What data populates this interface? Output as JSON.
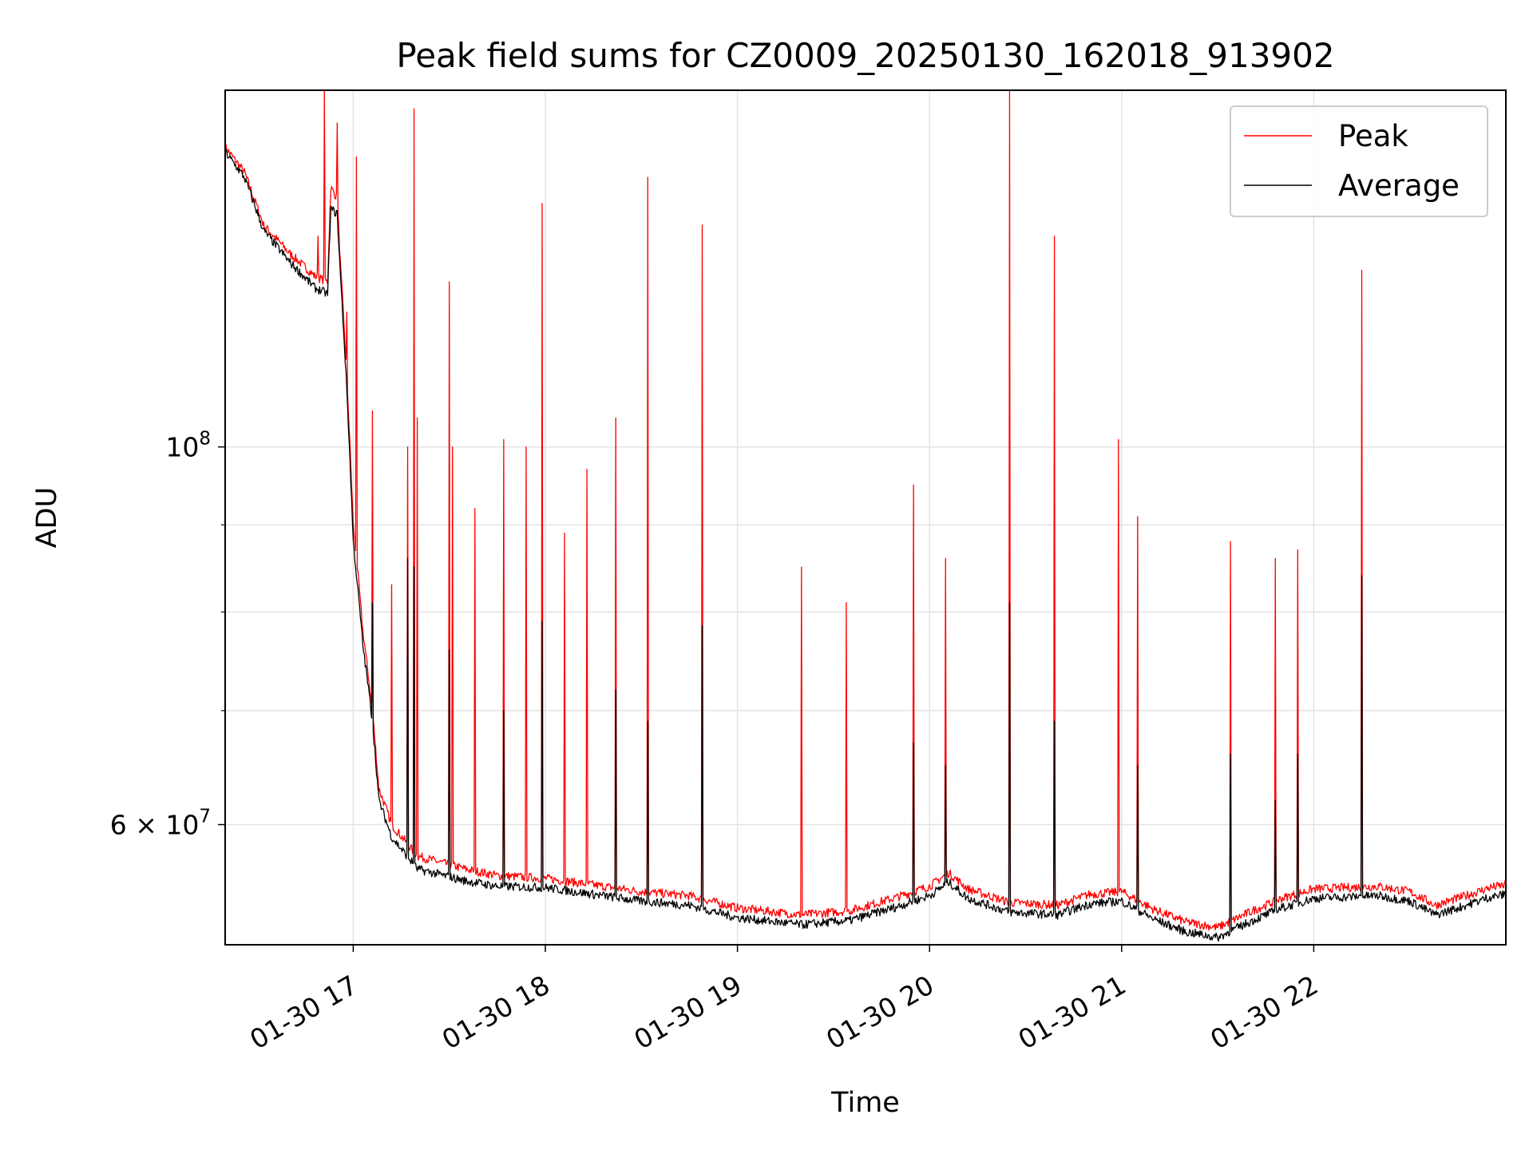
{
  "chart_data": {
    "type": "line",
    "title": "Peak field sums for CZ0009_20250130_162018_913902",
    "xlabel": "Time",
    "ylabel": "ADU",
    "yscale": "log",
    "grid": true,
    "legend_position": "top-right",
    "xlim": [
      "2025-01-30 16:20",
      "2025-01-30 23:00"
    ],
    "ylim": [
      51000000,
      162000000
    ],
    "x_ticks": [
      {
        "value": "2025-01-30 17:00",
        "label": "01-30 17"
      },
      {
        "value": "2025-01-30 18:00",
        "label": "01-30 18"
      },
      {
        "value": "2025-01-30 19:00",
        "label": "01-30 19"
      },
      {
        "value": "2025-01-30 20:00",
        "label": "01-30 20"
      },
      {
        "value": "2025-01-30 21:00",
        "label": "01-30 21"
      },
      {
        "value": "2025-01-30 22:00",
        "label": "01-30 22"
      }
    ],
    "y_major_ticks": [
      {
        "value": 60000000,
        "base": "6",
        "times": "×",
        "mant": "10",
        "exp": "7"
      },
      {
        "value": 100000000,
        "base": "",
        "times": "",
        "mant": "10",
        "exp": "8"
      }
    ],
    "y_minor_ticks": [
      70000000,
      80000000,
      90000000
    ],
    "series": [
      {
        "name": "Peak",
        "color": "#ff0000",
        "baseline": [
          [
            "2025-01-30 16:20",
            150000000
          ],
          [
            "2025-01-30 16:26",
            145000000
          ],
          [
            "2025-01-30 16:32",
            135000000
          ],
          [
            "2025-01-30 16:40",
            130000000
          ],
          [
            "2025-01-30 16:48",
            126000000
          ],
          [
            "2025-01-30 16:52",
            125000000
          ],
          [
            "2025-01-30 16:53",
            142000000
          ],
          [
            "2025-01-30 16:55",
            140000000
          ],
          [
            "2025-01-30 16:56",
            128000000
          ],
          [
            "2025-01-30 16:58",
            110000000
          ],
          [
            "2025-01-30 17:00",
            90000000
          ],
          [
            "2025-01-30 17:03",
            78000000
          ],
          [
            "2025-01-30 17:06",
            70000000
          ],
          [
            "2025-01-30 17:08",
            63000000
          ],
          [
            "2025-01-30 17:12",
            60000000
          ],
          [
            "2025-01-30 17:20",
            57500000
          ],
          [
            "2025-01-30 17:35",
            56500000
          ],
          [
            "2025-01-30 17:45",
            56000000
          ],
          [
            "2025-01-30 18:00",
            55800000
          ],
          [
            "2025-01-30 18:15",
            55300000
          ],
          [
            "2025-01-30 18:30",
            54800000
          ],
          [
            "2025-01-30 18:45",
            54500000
          ],
          [
            "2025-01-30 19:00",
            53600000
          ],
          [
            "2025-01-30 19:20",
            53100000
          ],
          [
            "2025-01-30 19:35",
            53400000
          ],
          [
            "2025-01-30 19:50",
            54400000
          ],
          [
            "2025-01-30 20:00",
            55200000
          ],
          [
            "2025-01-30 20:06",
            56200000
          ],
          [
            "2025-01-30 20:12",
            55000000
          ],
          [
            "2025-01-30 20:25",
            54000000
          ],
          [
            "2025-01-30 20:40",
            53800000
          ],
          [
            "2025-01-30 20:50",
            54600000
          ],
          [
            "2025-01-30 21:00",
            54800000
          ],
          [
            "2025-01-30 21:10",
            53500000
          ],
          [
            "2025-01-30 21:20",
            52600000
          ],
          [
            "2025-01-30 21:30",
            52200000
          ],
          [
            "2025-01-30 21:40",
            53300000
          ],
          [
            "2025-01-30 21:50",
            54300000
          ],
          [
            "2025-01-30 22:00",
            55000000
          ],
          [
            "2025-01-30 22:20",
            55200000
          ],
          [
            "2025-01-30 22:30",
            54800000
          ],
          [
            "2025-01-30 22:38",
            53800000
          ],
          [
            "2025-01-30 22:45",
            54300000
          ],
          [
            "2025-01-30 22:55",
            55100000
          ],
          [
            "2025-01-30 23:00",
            55300000
          ]
        ],
        "spikes": [
          [
            "2025-01-30 16:49",
            133000000
          ],
          [
            "2025-01-30 16:51",
            162000000
          ],
          [
            "2025-01-30 16:55",
            155000000
          ],
          [
            "2025-01-30 16:58",
            120000000
          ],
          [
            "2025-01-30 17:01",
            148000000
          ],
          [
            "2025-01-30 17:06",
            105000000
          ],
          [
            "2025-01-30 17:12",
            83000000
          ],
          [
            "2025-01-30 17:17",
            100000000
          ],
          [
            "2025-01-30 17:19",
            158000000
          ],
          [
            "2025-01-30 17:20",
            104000000
          ],
          [
            "2025-01-30 17:30",
            125000000
          ],
          [
            "2025-01-30 17:31",
            100000000
          ],
          [
            "2025-01-30 17:38",
            92000000
          ],
          [
            "2025-01-30 17:47",
            101000000
          ],
          [
            "2025-01-30 17:54",
            100000000
          ],
          [
            "2025-01-30 17:59",
            139000000
          ],
          [
            "2025-01-30 18:06",
            89000000
          ],
          [
            "2025-01-30 18:13",
            97000000
          ],
          [
            "2025-01-30 18:22",
            104000000
          ],
          [
            "2025-01-30 18:32",
            144000000
          ],
          [
            "2025-01-30 18:49",
            135000000
          ],
          [
            "2025-01-30 19:20",
            85000000
          ],
          [
            "2025-01-30 19:34",
            81000000
          ],
          [
            "2025-01-30 19:55",
            95000000
          ],
          [
            "2025-01-30 20:05",
            86000000
          ],
          [
            "2025-01-30 20:25",
            162000000
          ],
          [
            "2025-01-30 20:39",
            133000000
          ],
          [
            "2025-01-30 20:59",
            101000000
          ],
          [
            "2025-01-30 21:05",
            91000000
          ],
          [
            "2025-01-30 21:34",
            88000000
          ],
          [
            "2025-01-30 21:48",
            86000000
          ],
          [
            "2025-01-30 21:55",
            87000000
          ],
          [
            "2025-01-30 22:15",
            127000000
          ]
        ]
      },
      {
        "name": "Average",
        "color": "#000000",
        "baseline": [
          [
            "2025-01-30 16:20",
            149000000
          ],
          [
            "2025-01-30 16:26",
            144000000
          ],
          [
            "2025-01-30 16:32",
            134000000
          ],
          [
            "2025-01-30 16:40",
            128500000
          ],
          [
            "2025-01-30 16:48",
            124000000
          ],
          [
            "2025-01-30 16:52",
            123000000
          ],
          [
            "2025-01-30 16:53",
            138000000
          ],
          [
            "2025-01-30 16:55",
            137000000
          ],
          [
            "2025-01-30 16:56",
            126000000
          ],
          [
            "2025-01-30 16:58",
            108000000
          ],
          [
            "2025-01-30 17:00",
            88000000
          ],
          [
            "2025-01-30 17:03",
            76500000
          ],
          [
            "2025-01-30 17:06",
            69000000
          ],
          [
            "2025-01-30 17:08",
            62000000
          ],
          [
            "2025-01-30 17:12",
            59000000
          ],
          [
            "2025-01-30 17:20",
            56500000
          ],
          [
            "2025-01-30 17:35",
            55600000
          ],
          [
            "2025-01-30 17:45",
            55200000
          ],
          [
            "2025-01-30 18:00",
            55100000
          ],
          [
            "2025-01-30 18:15",
            54600000
          ],
          [
            "2025-01-30 18:30",
            54100000
          ],
          [
            "2025-01-30 18:45",
            53800000
          ],
          [
            "2025-01-30 19:00",
            52900000
          ],
          [
            "2025-01-30 19:20",
            52400000
          ],
          [
            "2025-01-30 19:35",
            52700000
          ],
          [
            "2025-01-30 19:50",
            53700000
          ],
          [
            "2025-01-30 20:00",
            54500000
          ],
          [
            "2025-01-30 20:06",
            55500000
          ],
          [
            "2025-01-30 20:12",
            54300000
          ],
          [
            "2025-01-30 20:25",
            53300000
          ],
          [
            "2025-01-30 20:40",
            53100000
          ],
          [
            "2025-01-30 20:50",
            53900000
          ],
          [
            "2025-01-30 21:00",
            54100000
          ],
          [
            "2025-01-30 21:10",
            52800000
          ],
          [
            "2025-01-30 21:20",
            51900000
          ],
          [
            "2025-01-30 21:30",
            51500000
          ],
          [
            "2025-01-30 21:40",
            52600000
          ],
          [
            "2025-01-30 21:50",
            53600000
          ],
          [
            "2025-01-30 22:00",
            54300000
          ],
          [
            "2025-01-30 22:20",
            54500000
          ],
          [
            "2025-01-30 22:30",
            54100000
          ],
          [
            "2025-01-30 22:38",
            53100000
          ],
          [
            "2025-01-30 22:45",
            53600000
          ],
          [
            "2025-01-30 22:55",
            54400000
          ],
          [
            "2025-01-30 23:00",
            54600000
          ]
        ],
        "spikes": [
          [
            "2025-01-30 17:06",
            81000000
          ],
          [
            "2025-01-30 17:17",
            86000000
          ],
          [
            "2025-01-30 17:19",
            85000000
          ],
          [
            "2025-01-30 17:30",
            76000000
          ],
          [
            "2025-01-30 17:47",
            70000000
          ],
          [
            "2025-01-30 17:59",
            79000000
          ],
          [
            "2025-01-30 18:22",
            72000000
          ],
          [
            "2025-01-30 18:32",
            69000000
          ],
          [
            "2025-01-30 18:49",
            78500000
          ],
          [
            "2025-01-30 19:55",
            67000000
          ],
          [
            "2025-01-30 20:05",
            65000000
          ],
          [
            "2025-01-30 20:25",
            81000000
          ],
          [
            "2025-01-30 20:39",
            69000000
          ],
          [
            "2025-01-30 21:05",
            65000000
          ],
          [
            "2025-01-30 21:34",
            66000000
          ],
          [
            "2025-01-30 21:48",
            62000000
          ],
          [
            "2025-01-30 21:55",
            66000000
          ],
          [
            "2025-01-30 22:15",
            84000000
          ]
        ]
      }
    ]
  }
}
